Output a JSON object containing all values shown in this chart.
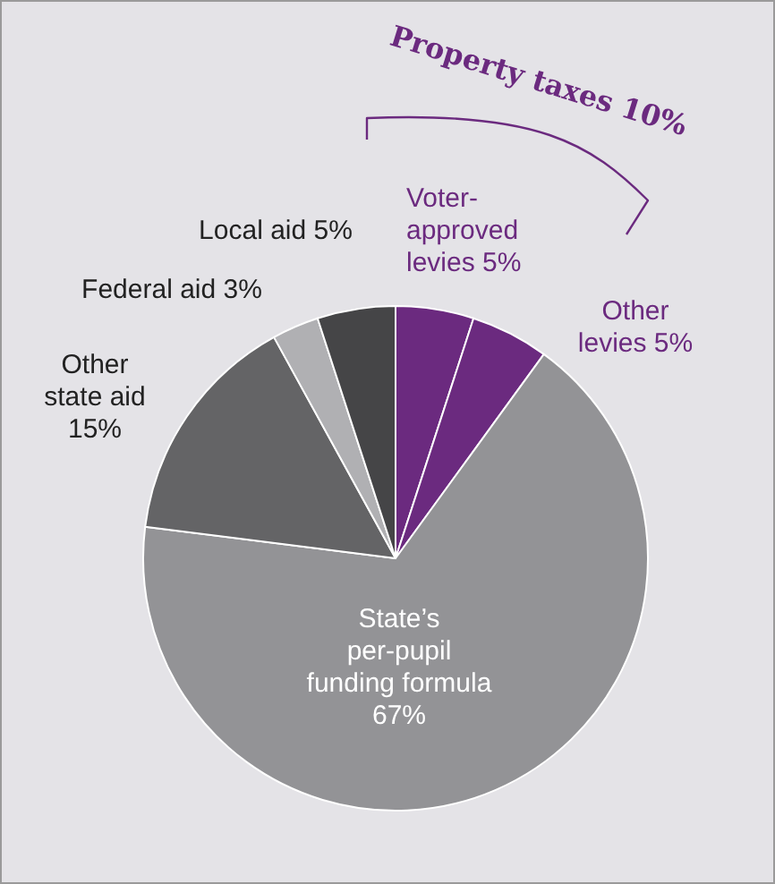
{
  "chart_data": {
    "type": "pie",
    "categories": [
      "Voter-approved levies",
      "Other levies",
      "State’s per-pupil funding formula",
      "Other state aid",
      "Federal aid",
      "Local aid"
    ],
    "values": [
      5,
      5,
      67,
      15,
      3,
      5
    ],
    "value_labels": [
      "5%",
      "5%",
      "67%",
      "15%",
      "3%",
      "5%"
    ],
    "colors": [
      "#6b2a7f",
      "#6b2a7f",
      "#939396",
      "#646466",
      "#b0b0b3",
      "#454547"
    ],
    "annotations": [
      "Property taxes 10%"
    ]
  }
}
